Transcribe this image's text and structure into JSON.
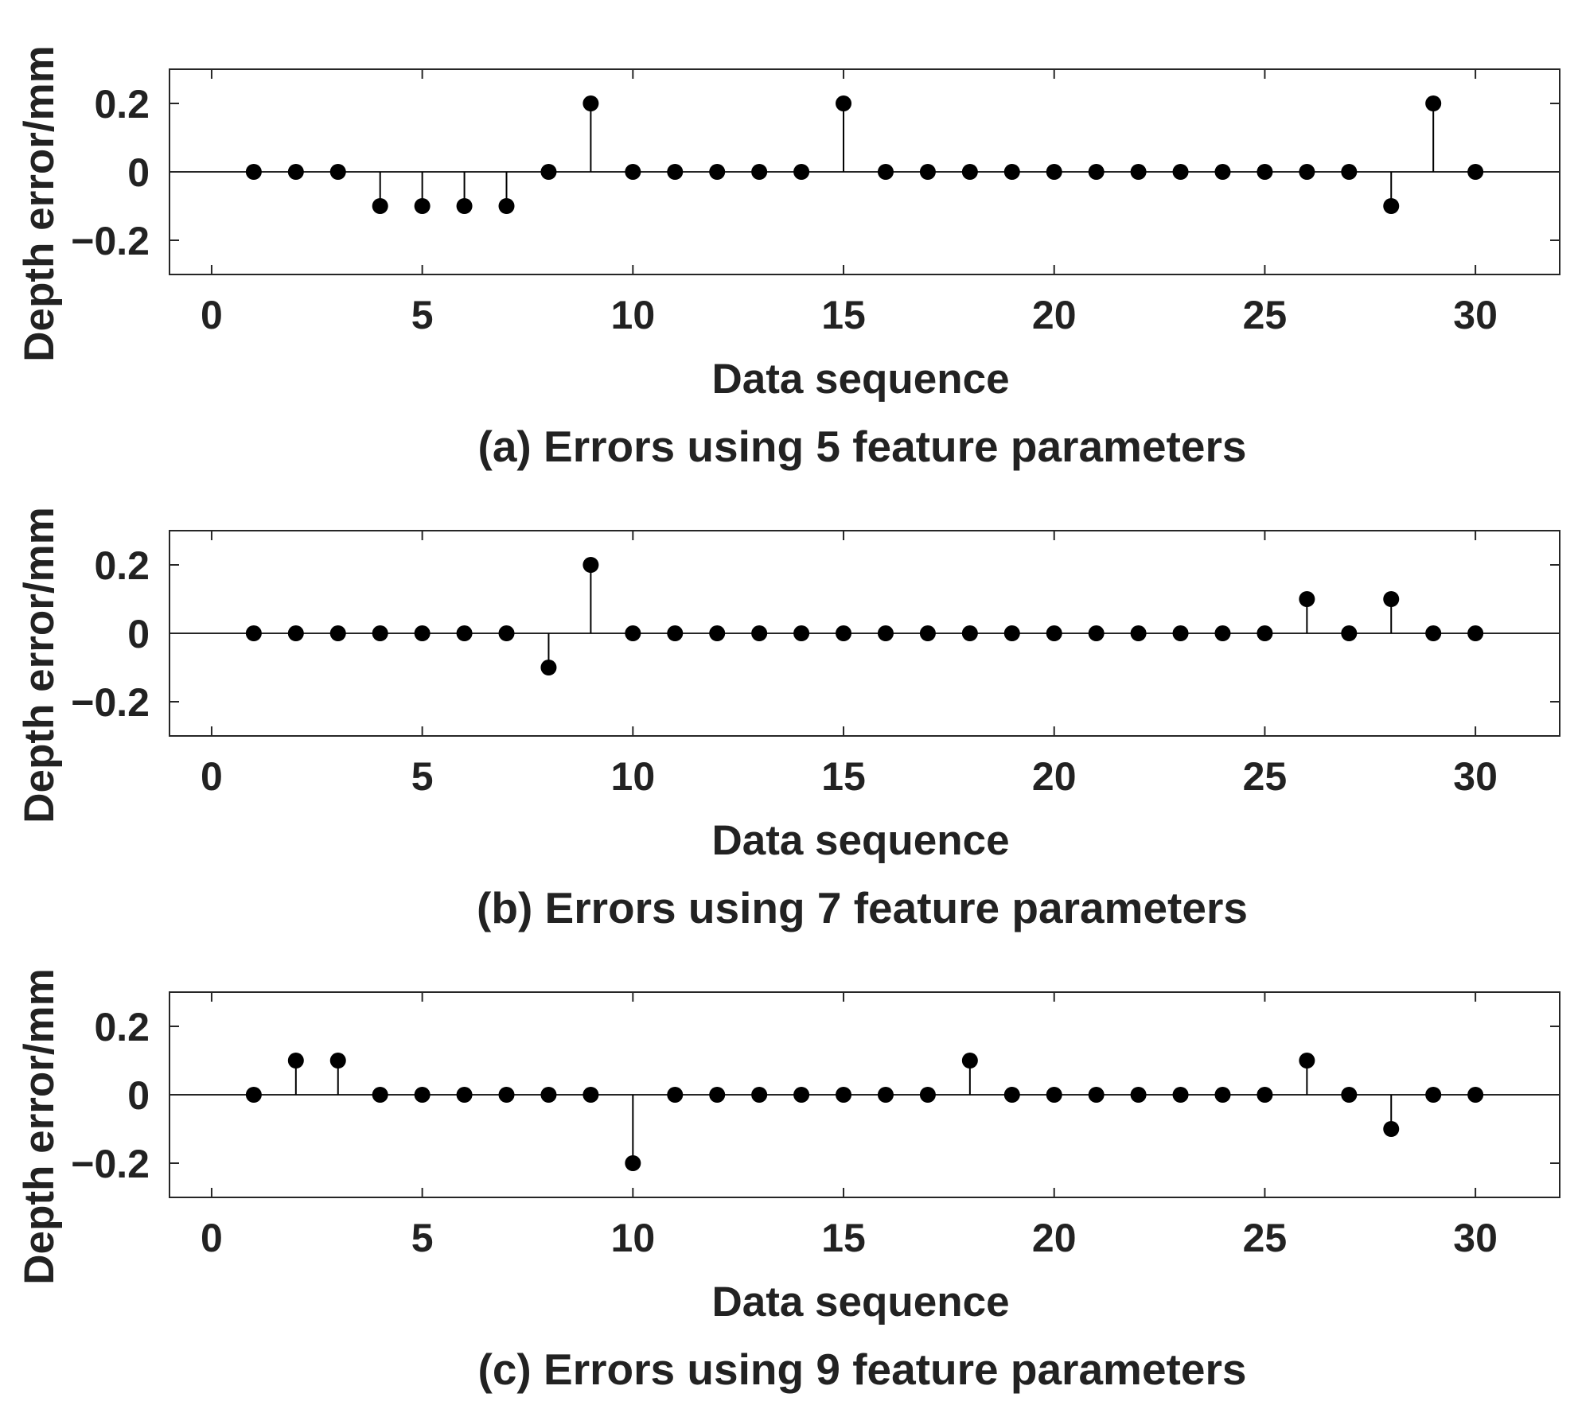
{
  "chart_data": [
    {
      "type": "stem",
      "caption": "(a) Errors using 5 feature parameters",
      "xlabel": "Data sequence",
      "ylabel": "Depth error/mm",
      "xlim": [
        -1,
        32
      ],
      "ylim": [
        -0.3,
        0.3
      ],
      "xticks": [
        0,
        5,
        10,
        15,
        20,
        25,
        30
      ],
      "xtick_labels": [
        "0",
        "5",
        "10",
        "15",
        "20",
        "25",
        "30"
      ],
      "yticks": [
        0.2,
        0,
        -0.2
      ],
      "ytick_labels": [
        "0.2",
        "0",
        "−0.2"
      ],
      "grid": false,
      "x": [
        1,
        2,
        3,
        4,
        5,
        6,
        7,
        8,
        9,
        10,
        11,
        12,
        13,
        14,
        15,
        16,
        17,
        18,
        19,
        20,
        21,
        22,
        23,
        24,
        25,
        26,
        27,
        28,
        29,
        30
      ],
      "values": [
        0,
        0,
        0,
        -0.1,
        -0.1,
        -0.1,
        -0.1,
        0,
        0.2,
        0,
        0,
        0,
        0,
        0,
        0.2,
        0,
        0,
        0,
        0,
        0,
        0,
        0,
        0,
        0,
        0,
        0,
        0,
        -0.1,
        0.2,
        0
      ]
    },
    {
      "type": "stem",
      "caption": "(b) Errors using 7 feature parameters",
      "xlabel": "Data sequence",
      "ylabel": "Depth error/mm",
      "xlim": [
        -1,
        32
      ],
      "ylim": [
        -0.3,
        0.3
      ],
      "xticks": [
        0,
        5,
        10,
        15,
        20,
        25,
        30
      ],
      "xtick_labels": [
        "0",
        "5",
        "10",
        "15",
        "20",
        "25",
        "30"
      ],
      "yticks": [
        0.2,
        0,
        -0.2
      ],
      "ytick_labels": [
        "0.2",
        "0",
        "−0.2"
      ],
      "grid": false,
      "x": [
        1,
        2,
        3,
        4,
        5,
        6,
        7,
        8,
        9,
        10,
        11,
        12,
        13,
        14,
        15,
        16,
        17,
        18,
        19,
        20,
        21,
        22,
        23,
        24,
        25,
        26,
        27,
        28,
        29,
        30
      ],
      "values": [
        0,
        0,
        0,
        0,
        0,
        0,
        0,
        -0.1,
        0.2,
        0,
        0,
        0,
        0,
        0,
        0,
        0,
        0,
        0,
        0,
        0,
        0,
        0,
        0,
        0,
        0,
        0.1,
        0,
        0.1,
        0,
        0
      ]
    },
    {
      "type": "stem",
      "caption": "(c) Errors using 9 feature parameters",
      "xlabel": "Data sequence",
      "ylabel": "Depth error/mm",
      "xlim": [
        -1,
        32
      ],
      "ylim": [
        -0.3,
        0.3
      ],
      "xticks": [
        0,
        5,
        10,
        15,
        20,
        25,
        30
      ],
      "xtick_labels": [
        "0",
        "5",
        "10",
        "15",
        "20",
        "25",
        "30"
      ],
      "yticks": [
        0.2,
        0,
        -0.2
      ],
      "ytick_labels": [
        "0.2",
        "0",
        "−0.2"
      ],
      "grid": false,
      "x": [
        1,
        2,
        3,
        4,
        5,
        6,
        7,
        8,
        9,
        10,
        11,
        12,
        13,
        14,
        15,
        16,
        17,
        18,
        19,
        20,
        21,
        22,
        23,
        24,
        25,
        26,
        27,
        28,
        29,
        30
      ],
      "values": [
        0,
        0.1,
        0.1,
        0,
        0,
        0,
        0,
        0,
        0,
        -0.2,
        0,
        0,
        0,
        0,
        0,
        0,
        0,
        0.1,
        0,
        0,
        0,
        0,
        0,
        0,
        0,
        0.1,
        0,
        -0.1,
        0,
        0
      ]
    }
  ],
  "colors": {
    "marker": "#000000",
    "axes": "#262626",
    "text": "#222222",
    "background": "#ffffff"
  }
}
